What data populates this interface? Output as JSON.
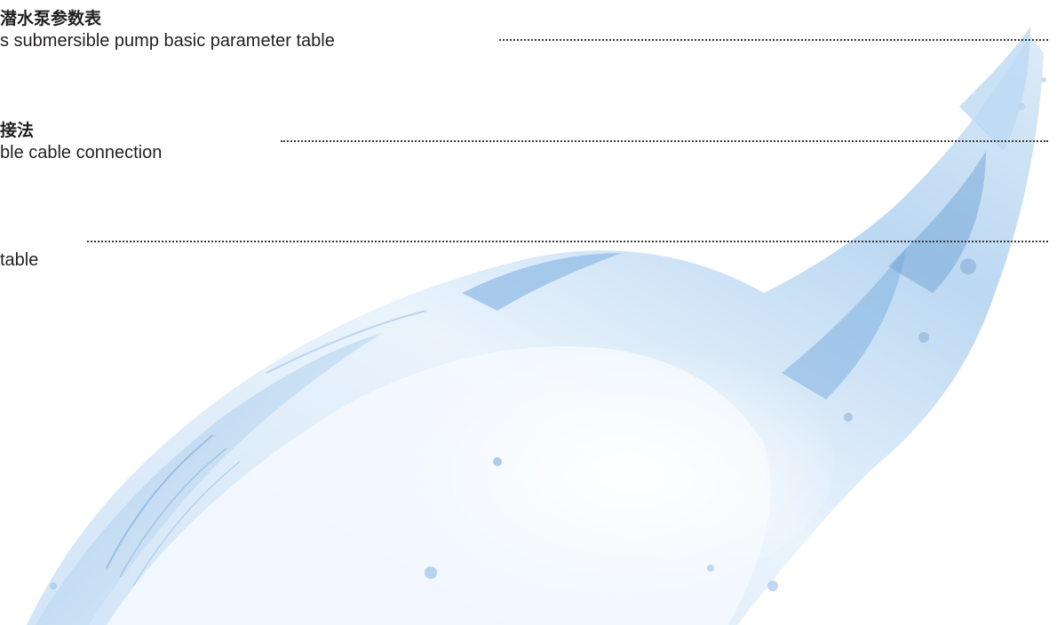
{
  "toc": {
    "entries": [
      {
        "title_cn": "潜水泵参数表",
        "title_en": "s submersible pump basic parameter table"
      },
      {
        "title_cn": "接法",
        "title_en": "ble cable connection"
      },
      {
        "title_cn": "",
        "title_en": "table"
      }
    ]
  },
  "colors": {
    "water_light": "#e6f1fb",
    "water_mid": "#a9cdee",
    "water_dark": "#5e95c9",
    "text": "#231f20"
  }
}
